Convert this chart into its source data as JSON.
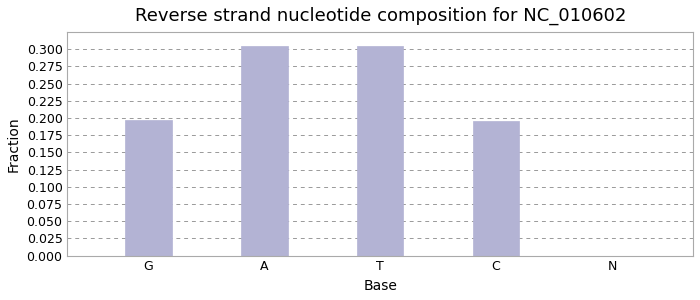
{
  "title": "Reverse strand nucleotide composition for NC_010602",
  "xlabel": "Base",
  "ylabel": "Fraction",
  "categories": [
    "G",
    "A",
    "T",
    "C",
    "N"
  ],
  "values": [
    0.197,
    0.305,
    0.305,
    0.195,
    0.0
  ],
  "bar_color": "#b3b3d4",
  "bar_edgecolor": "#b3b3d4",
  "ylim": [
    0.0,
    0.325
  ],
  "ytick_step": 0.025,
  "grid_color": "#999999",
  "bg_color": "#ffffff",
  "title_fontsize": 13,
  "axis_label_fontsize": 10,
  "tick_fontsize": 9,
  "spine_color": "#aaaaaa"
}
